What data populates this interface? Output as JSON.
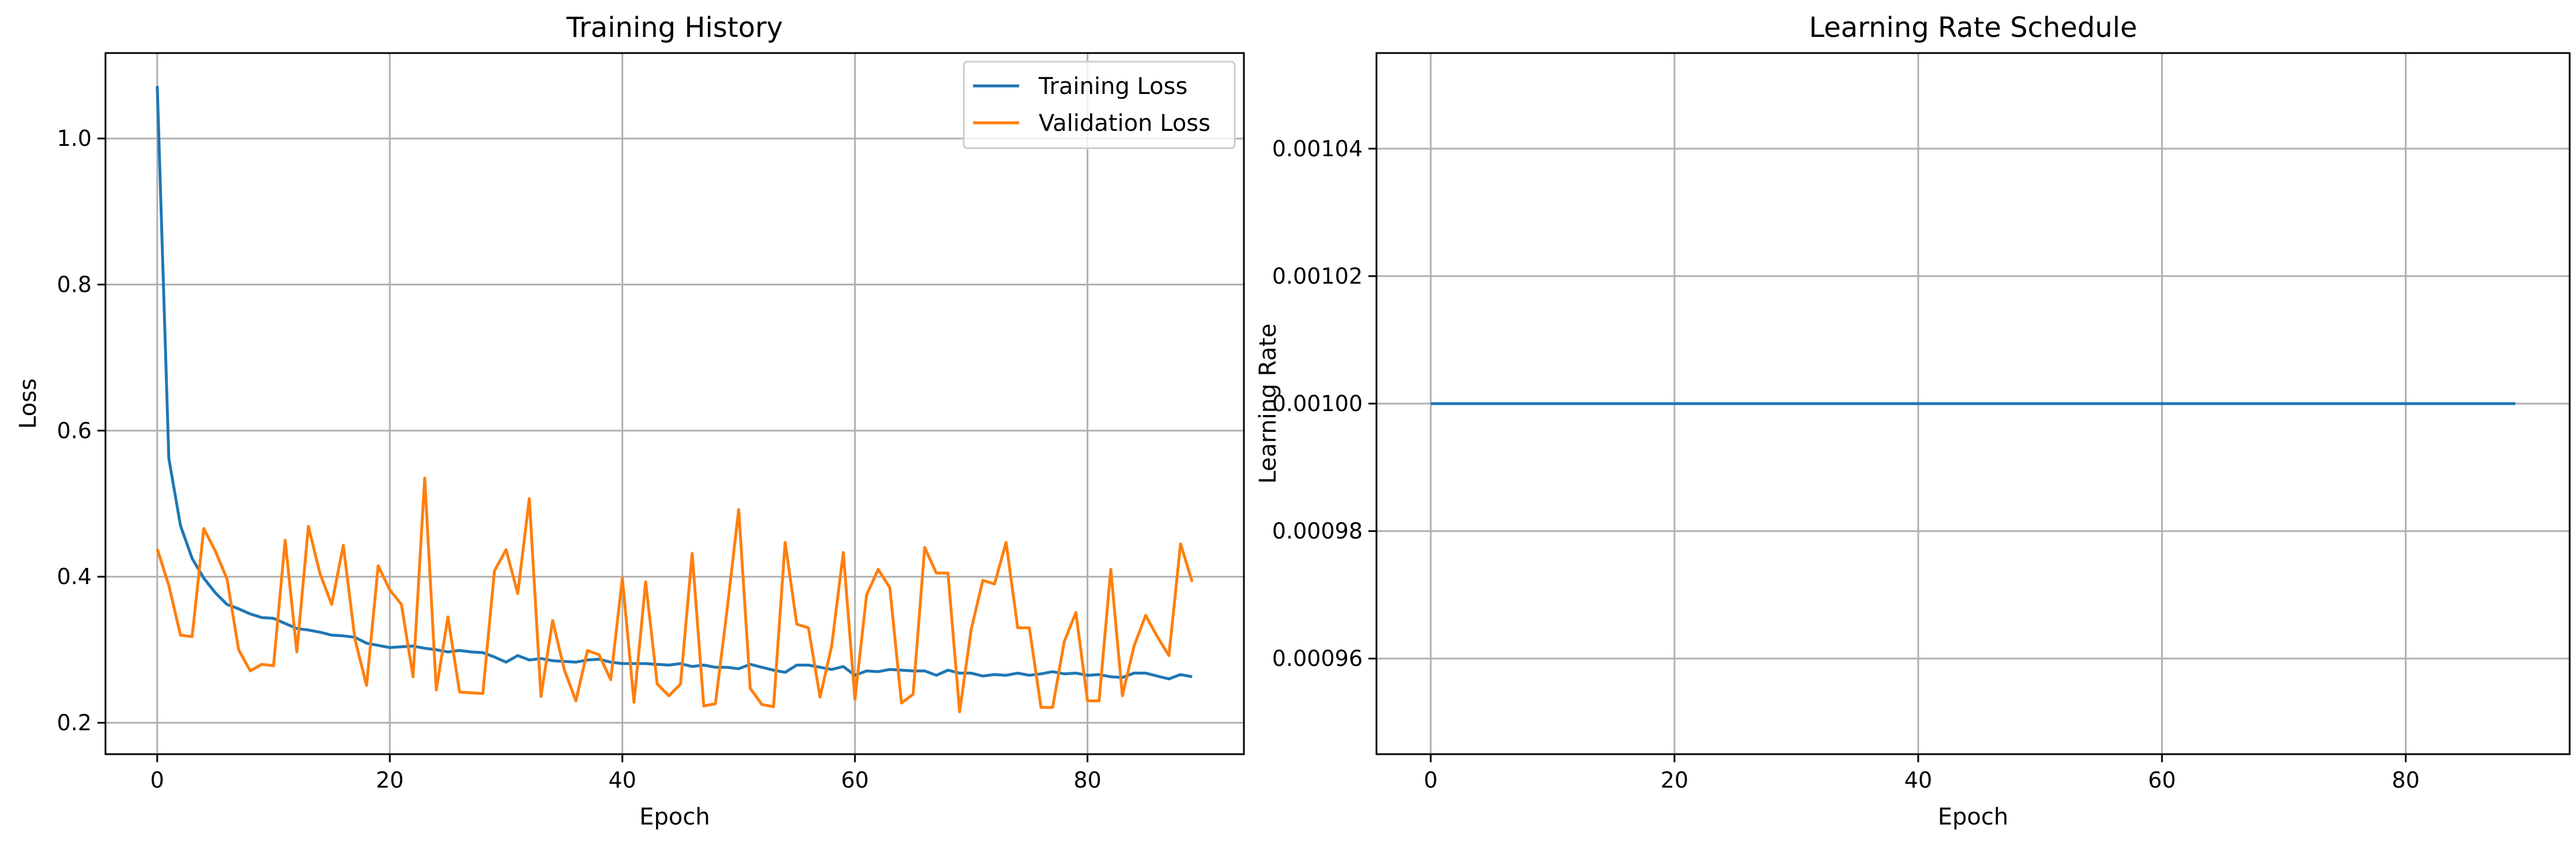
{
  "chart_data": [
    {
      "type": "line",
      "title": "Training History",
      "xlabel": "Epoch",
      "ylabel": "Loss",
      "xlim": [
        -4.45,
        93.45
      ],
      "ylim": [
        0.157,
        1.117
      ],
      "xticks": [
        0,
        20,
        40,
        60,
        80
      ],
      "yticks": [
        0.2,
        0.4,
        0.6,
        0.8,
        1.0
      ],
      "ytick_labels": [
        "0.2",
        "0.4",
        "0.6",
        "0.8",
        "1.0"
      ],
      "grid": true,
      "legend": "top-right",
      "series": [
        {
          "name": "Training Loss",
          "color": "#1f77b4",
          "values": [
            1.072,
            0.562,
            0.47,
            0.425,
            0.398,
            0.378,
            0.362,
            0.356,
            0.349,
            0.344,
            0.343,
            0.336,
            0.329,
            0.327,
            0.324,
            0.32,
            0.319,
            0.317,
            0.309,
            0.306,
            0.303,
            0.304,
            0.305,
            0.302,
            0.3,
            0.297,
            0.299,
            0.297,
            0.296,
            0.29,
            0.283,
            0.292,
            0.286,
            0.288,
            0.285,
            0.284,
            0.283,
            0.286,
            0.287,
            0.283,
            0.281,
            0.281,
            0.281,
            0.28,
            0.279,
            0.281,
            0.277,
            0.279,
            0.276,
            0.276,
            0.274,
            0.28,
            0.276,
            0.272,
            0.269,
            0.279,
            0.279,
            0.276,
            0.273,
            0.277,
            0.265,
            0.271,
            0.27,
            0.273,
            0.272,
            0.271,
            0.271,
            0.265,
            0.272,
            0.268,
            0.268,
            0.264,
            0.266,
            0.265,
            0.268,
            0.265,
            0.267,
            0.27,
            0.267,
            0.268,
            0.265,
            0.266,
            0.263,
            0.262,
            0.268,
            0.268,
            0.264,
            0.26,
            0.266,
            0.263
          ]
        },
        {
          "name": "Validation Loss",
          "color": "#ff7f0e",
          "values": [
            0.438,
            0.388,
            0.32,
            0.318,
            0.466,
            0.435,
            0.397,
            0.3,
            0.271,
            0.28,
            0.278,
            0.45,
            0.297,
            0.469,
            0.404,
            0.362,
            0.443,
            0.315,
            0.251,
            0.415,
            0.382,
            0.362,
            0.263,
            0.535,
            0.245,
            0.345,
            0.242,
            0.241,
            0.24,
            0.408,
            0.437,
            0.377,
            0.507,
            0.236,
            0.34,
            0.273,
            0.23,
            0.299,
            0.293,
            0.259,
            0.398,
            0.228,
            0.393,
            0.253,
            0.237,
            0.253,
            0.432,
            0.223,
            0.226,
            0.354,
            0.492,
            0.247,
            0.225,
            0.222,
            0.447,
            0.335,
            0.33,
            0.235,
            0.305,
            0.433,
            0.232,
            0.375,
            0.41,
            0.385,
            0.227,
            0.239,
            0.44,
            0.405,
            0.405,
            0.215,
            0.328,
            0.395,
            0.39,
            0.447,
            0.33,
            0.33,
            0.221,
            0.221,
            0.311,
            0.351,
            0.23,
            0.23,
            0.41,
            0.237,
            0.305,
            0.347,
            0.318,
            0.292,
            0.445,
            0.393
          ]
        }
      ]
    },
    {
      "type": "line",
      "title": "Learning Rate Schedule",
      "xlabel": "Epoch",
      "ylabel": "Learning Rate",
      "xlim": [
        -4.45,
        93.45
      ],
      "ylim": [
        0.000945,
        0.001055
      ],
      "xticks": [
        0,
        20,
        40,
        60,
        80
      ],
      "yticks": [
        0.00096,
        0.00098,
        0.001,
        0.00102,
        0.00104
      ],
      "ytick_labels": [
        "0.00096",
        "0.00098",
        "0.00100",
        "0.00102",
        "0.00104"
      ],
      "grid": true,
      "series": [
        {
          "color": "#1f77b4",
          "x": [
            0,
            89
          ],
          "values": [
            0.001,
            0.001
          ]
        }
      ]
    }
  ]
}
